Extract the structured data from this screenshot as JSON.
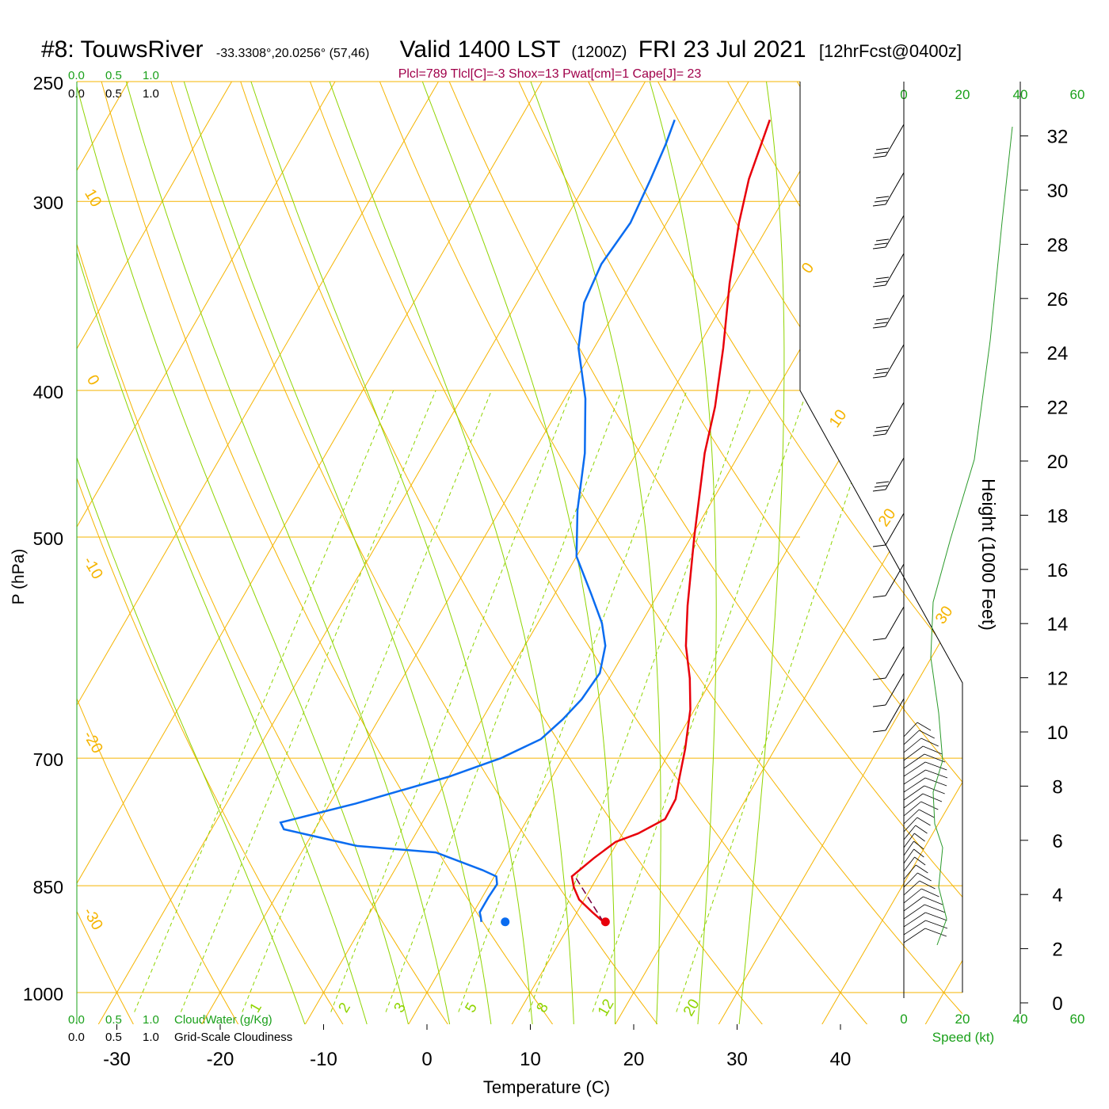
{
  "header": {
    "station": "#8: TouwsRiver",
    "coords": "-33.3308°,20.0256° (57,46)",
    "valid": "Valid 1400 LST",
    "zulu": "(1200Z)",
    "date": "FRI 23 Jul 2021",
    "forecast": "[12hrFcst@0400z]"
  },
  "indices": "Plcl=789 Tlcl[C]=-3 Shox=13 Pwat[cm]=1 Cape[J]= 23",
  "cloud_scale": {
    "top_green": [
      "0.0",
      "0.5",
      "1.0"
    ],
    "top_black": [
      "0.0",
      "0.5",
      "1.0"
    ],
    "bottom_green": [
      "0.0",
      "0.5",
      "1.0"
    ],
    "bottom_black": [
      "0.0",
      "0.5",
      "1.0"
    ],
    "cloudwater_label": "CloudWater (g/Kg)",
    "cloudiness_label": "Grid-Scale Cloudiness"
  },
  "speed_axis": {
    "ticks": [
      "0",
      "20",
      "40",
      "60"
    ],
    "label": "Speed (kt)"
  },
  "colors": {
    "isotherm": "#f5b400",
    "mixing_ratio": "#8fd400",
    "temperature": "#e8000b",
    "dewpoint": "#0a6cf0",
    "parcel": "#7a0040",
    "indices": "#a0004a",
    "green_text": "#1aa01a",
    "speed_line": "#2a9a2a"
  },
  "chart_data": {
    "type": "line",
    "title": "#8: TouwsRiver Valid 1400 LST (1200Z) FRI 23 Jul 2021",
    "xlabel": "Temperature (C)",
    "ylabel": "P (hPa)",
    "y2label": "Height (1000 Feet)",
    "y_scale": "log",
    "xlim": [
      -34,
      36
    ],
    "ylim": [
      1030,
      250
    ],
    "x_ticks": [
      -30,
      -20,
      -10,
      0,
      10,
      20,
      30,
      40
    ],
    "pressure_ticks": [
      250,
      300,
      400,
      500,
      700,
      850,
      1000
    ],
    "height_ticks": [
      0,
      2,
      4,
      6,
      8,
      10,
      12,
      14,
      16,
      18,
      20,
      22,
      24,
      26,
      28,
      30,
      32
    ],
    "isotherm_labels": [
      "10",
      "0",
      "-10",
      "-20",
      "-30",
      "0",
      "10",
      "20",
      "30"
    ],
    "mixing_ratio_labels": [
      "1",
      "2",
      "3",
      "5",
      "8",
      "12",
      "20"
    ],
    "series": [
      {
        "name": "temperature",
        "points": [
          [
            13.1,
            898
          ],
          [
            11.5,
            885
          ],
          [
            9.5,
            868
          ],
          [
            8.3,
            852
          ],
          [
            7.5,
            838
          ],
          [
            8.6,
            815
          ],
          [
            9.8,
            795
          ],
          [
            11.5,
            785
          ],
          [
            13.3,
            768
          ],
          [
            13.2,
            745
          ],
          [
            12.4,
            722
          ],
          [
            11.3,
            690
          ],
          [
            9.6,
            650
          ],
          [
            7.8,
            620
          ],
          [
            5.6,
            590
          ],
          [
            3.5,
            555
          ],
          [
            0.3,
            500
          ],
          [
            -1.8,
            465
          ],
          [
            -3.4,
            440
          ],
          [
            -5.0,
            410
          ],
          [
            -7.5,
            375
          ],
          [
            -10.5,
            340
          ],
          [
            -13.0,
            310
          ],
          [
            -14.5,
            290
          ],
          [
            -15.8,
            265
          ]
        ]
      },
      {
        "name": "dewpoint",
        "points": [
          [
            1.3,
            898
          ],
          [
            1.0,
            892
          ],
          [
            0.6,
            885
          ],
          [
            0.6,
            865
          ],
          [
            0.7,
            848
          ],
          [
            0.2,
            838
          ],
          [
            -1.5,
            830
          ],
          [
            -7.0,
            808
          ],
          [
            -15.0,
            800
          ],
          [
            -23.0,
            780
          ],
          [
            -23.7,
            772
          ],
          [
            -17.5,
            750
          ],
          [
            -10.0,
            720
          ],
          [
            -6.0,
            700
          ],
          [
            -3.2,
            680
          ],
          [
            -2.2,
            660
          ],
          [
            -1.5,
            640
          ],
          [
            -1.2,
            615
          ],
          [
            -2.2,
            590
          ],
          [
            -3.8,
            570
          ],
          [
            -6.5,
            545
          ],
          [
            -10.0,
            515
          ],
          [
            -12.5,
            480
          ],
          [
            -15.0,
            440
          ],
          [
            -18.0,
            405
          ],
          [
            -21.5,
            375
          ],
          [
            -23.5,
            350
          ],
          [
            -24.0,
            330
          ],
          [
            -23.5,
            310
          ],
          [
            -24.0,
            290
          ],
          [
            -24.5,
            275
          ],
          [
            -25.0,
            265
          ]
        ]
      },
      {
        "name": "parcel",
        "points": [
          [
            13.1,
            898
          ],
          [
            7.8,
            838
          ]
        ]
      }
    ],
    "surface_points": {
      "temperature": [
        13.3,
        898
      ],
      "dewpoint": [
        3.6,
        898
      ]
    }
  }
}
